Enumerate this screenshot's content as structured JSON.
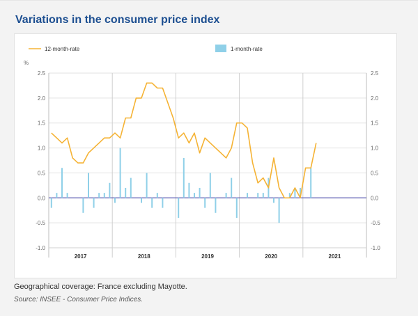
{
  "page": {
    "title": "Variations in the consumer price index",
    "coverage_note": "Geographical coverage: France excluding Mayotte.",
    "source": "Source: INSEE - Consumer Price Indices."
  },
  "colors": {
    "line": "#f5b335",
    "bar": "#8fd0e8",
    "zero": "#5a5ab0",
    "grid": "#e2e2e2",
    "year_sep": "#cfcfcf"
  },
  "chart_data": {
    "type": "bar+line",
    "title": "Variations in the consumer price index",
    "unit_label": "%",
    "ylim": [
      -1.0,
      2.5
    ],
    "yticks": [
      "2.5",
      "2.0",
      "1.5",
      "1.0",
      "0.5",
      "0.0",
      "-0.5",
      "-1.0"
    ],
    "ytick_values": [
      2.5,
      2.0,
      1.5,
      1.0,
      0.5,
      0.0,
      -0.5,
      -1.0
    ],
    "years": [
      "2017",
      "2018",
      "2019",
      "2020",
      "2021"
    ],
    "months_in_year": [
      12,
      12,
      12,
      12,
      3
    ],
    "legend": {
      "line_label": "12-month-rate",
      "bar_label": "1-month-rate"
    },
    "series": [
      {
        "name": "12-month-rate",
        "kind": "line",
        "values": [
          1.3,
          1.2,
          1.1,
          1.2,
          0.8,
          0.7,
          0.7,
          0.9,
          1.0,
          1.1,
          1.2,
          1.2,
          1.3,
          1.2,
          1.6,
          1.6,
          2.0,
          2.0,
          2.3,
          2.3,
          2.2,
          2.2,
          1.9,
          1.6,
          1.2,
          1.3,
          1.1,
          1.3,
          0.9,
          1.2,
          1.1,
          1.0,
          0.9,
          0.8,
          1.0,
          1.5,
          1.5,
          1.4,
          0.7,
          0.3,
          0.4,
          0.2,
          0.8,
          0.2,
          0.0,
          0.0,
          0.2,
          0.0,
          0.6,
          0.6,
          1.1
        ]
      },
      {
        "name": "1-month-rate",
        "kind": "bar",
        "values": [
          -0.2,
          0.1,
          0.6,
          0.1,
          0.0,
          0.0,
          -0.3,
          0.5,
          -0.2,
          0.1,
          0.1,
          0.3,
          -0.1,
          1.0,
          0.2,
          0.4,
          0.0,
          -0.1,
          0.5,
          -0.2,
          0.1,
          -0.2,
          0.0,
          0.0,
          -0.4,
          0.8,
          0.3,
          0.1,
          0.2,
          -0.2,
          0.5,
          -0.3,
          0.0,
          0.1,
          0.4,
          -0.4,
          0.0,
          0.1,
          0.0,
          0.1,
          0.1,
          0.4,
          -0.1,
          -0.5,
          0.0,
          0.1,
          0.2,
          0.2,
          0.0,
          0.6,
          0.0
        ]
      }
    ]
  }
}
